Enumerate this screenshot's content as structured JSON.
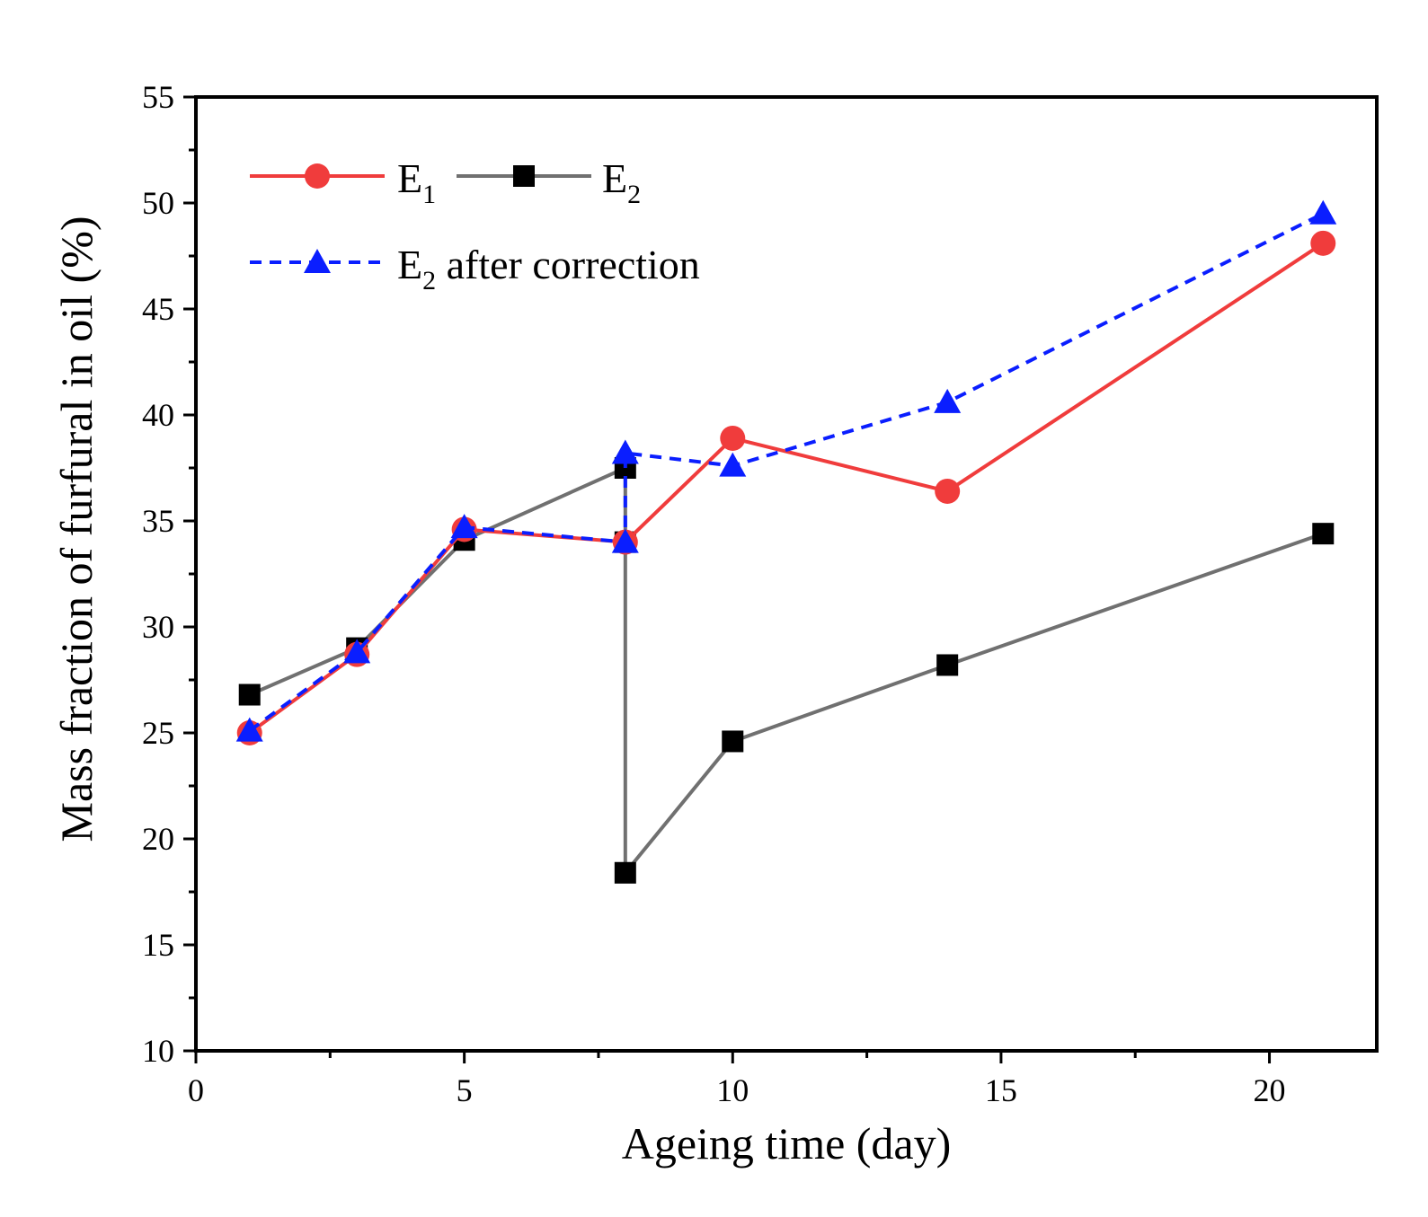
{
  "chart_data": {
    "type": "line",
    "xlabel": "Ageing time (day)",
    "ylabel": "Mass fraction of furfural in  oil (%)",
    "xlim": [
      0,
      22
    ],
    "ylim": [
      10,
      55
    ],
    "xticks": [
      "0",
      "5",
      "10",
      "15",
      "20"
    ],
    "yticks": [
      "10",
      "15",
      "20",
      "25",
      "30",
      "35",
      "40",
      "45",
      "50",
      "55"
    ],
    "grid": false,
    "legend_position": "top-left",
    "series": [
      {
        "name": "E",
        "name_subscript": "1",
        "color": "#f03c3c",
        "marker": "circle",
        "line_style": "solid",
        "x": [
          1,
          3,
          5,
          8,
          10,
          14,
          21
        ],
        "y": [
          25.0,
          28.7,
          34.6,
          34.0,
          38.9,
          36.4,
          48.1
        ]
      },
      {
        "name": "E",
        "name_subscript": "2",
        "color": "#707070",
        "marker": "square",
        "line_style": "solid",
        "x": [
          1,
          3,
          5,
          8,
          8,
          8,
          10,
          14,
          21
        ],
        "y": [
          26.8,
          29.0,
          34.1,
          37.5,
          34.0,
          18.4,
          24.6,
          28.2,
          34.4
        ]
      },
      {
        "name": "E",
        "name_subscript": "2",
        "name_suffix": " after correction",
        "color": "#0a1eff",
        "marker": "triangle",
        "line_style": "dashed",
        "x": [
          1,
          3,
          5,
          8,
          8,
          10,
          14,
          21
        ],
        "y": [
          25.1,
          28.8,
          34.7,
          34.0,
          38.2,
          37.6,
          40.6,
          49.5
        ]
      }
    ]
  }
}
